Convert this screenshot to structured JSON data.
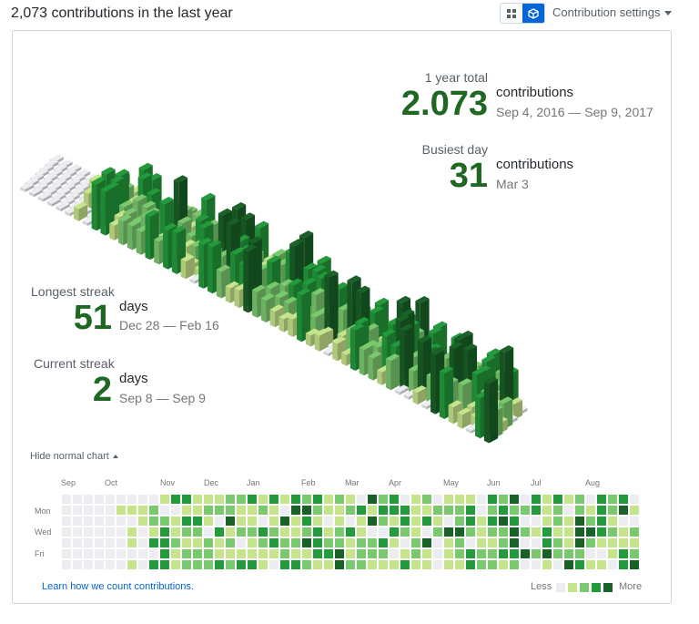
{
  "header": {
    "title": "2,073 contributions in the last year",
    "settings_label": "Contribution settings"
  },
  "stats": {
    "year_total": {
      "label": "1 year total",
      "value": "2.073",
      "unit": "contributions",
      "range": "Sep 4, 2016 — Sep 9, 2017"
    },
    "busiest_day": {
      "label": "Busiest day",
      "value": "31",
      "unit": "contributions",
      "date": "Mar 3"
    },
    "longest_streak": {
      "label": "Longest streak",
      "value": "51",
      "unit": "days",
      "range": "Dec 28 — Feb 16"
    },
    "current_streak": {
      "label": "Current streak",
      "value": "2",
      "unit": "days",
      "range": "Sep 8 — Sep 9"
    }
  },
  "calendar": {
    "hide_label": "Hide normal chart",
    "months": [
      "Sep",
      "Oct",
      "Nov",
      "Dec",
      "Jan",
      "Feb",
      "Mar",
      "Apr",
      "May",
      "Jun",
      "Jul",
      "Aug"
    ],
    "days": [
      "Mon",
      "Wed",
      "Fri"
    ],
    "learn_label": "Learn how we count contributions.",
    "legend_less": "Less",
    "legend_more": "More"
  },
  "colors": {
    "empty": "#ebedf0",
    "level1": "#c6e48b",
    "level2": "#7bc96f",
    "level3": "#239a3b",
    "level4": "#196127",
    "accent": "#0366d6",
    "big_number": "#1e6823"
  }
}
